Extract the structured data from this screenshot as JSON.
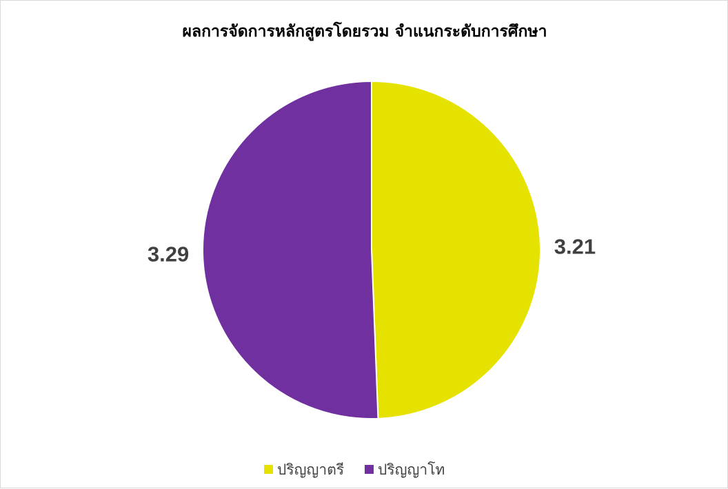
{
  "chart_data": {
    "type": "pie",
    "title": "ผลการจัดการหลักสูตรโดยรวม จำแนกระดับการศึกษา",
    "categories": [
      "ปริญญาตรี",
      "ปริญญาโท"
    ],
    "values": [
      3.21,
      3.29
    ],
    "value_labels": [
      "3.21",
      "3.29"
    ],
    "colors": [
      "#E5E200",
      "#7030A0"
    ],
    "legend_position": "bottom",
    "start_angle": "12 o'clock",
    "direction": "clockwise"
  }
}
